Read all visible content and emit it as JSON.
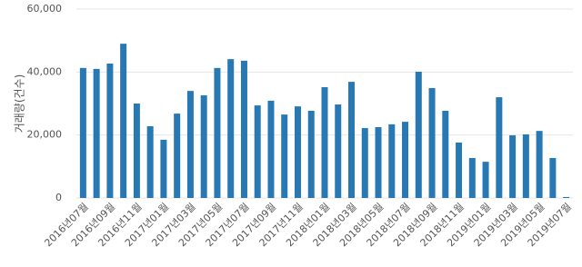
{
  "chart_data": {
    "type": "bar",
    "y_axis_label": "거래량(건수)",
    "categories": [
      "2016년07월",
      null,
      "2016년09월",
      null,
      "2016년11월",
      null,
      "2017년01월",
      null,
      "2017년03월",
      null,
      "2017년05월",
      null,
      "2017년07월",
      null,
      "2017년09월",
      null,
      "2017년11월",
      null,
      "2018년01월",
      null,
      "2018년03월",
      null,
      "2018년05월",
      null,
      "2018년07월",
      null,
      "2018년09월",
      null,
      "2018년11월",
      null,
      "2019년01월",
      null,
      "2019년03월",
      null,
      "2019년05월",
      null,
      "2019년07월"
    ],
    "values": [
      41300,
      41000,
      42700,
      49000,
      30000,
      22800,
      18500,
      26800,
      34000,
      32600,
      41300,
      44100,
      43600,
      29400,
      30900,
      26500,
      29100,
      27700,
      35200,
      29700,
      36900,
      22200,
      22500,
      23400,
      24200,
      40100,
      34900,
      27700,
      17600,
      12700,
      11500,
      32000,
      19900,
      20200,
      21300,
      12700,
      300
    ],
    "color": "#2878b4",
    "ylim": [
      0,
      60000
    ],
    "yticks": [
      0,
      {
        "value": 20000,
        "label": "20,000"
      },
      {
        "value": 40000,
        "label": "40,000"
      },
      {
        "value": 60000,
        "label": "60,000"
      }
    ],
    "grid": true
  }
}
